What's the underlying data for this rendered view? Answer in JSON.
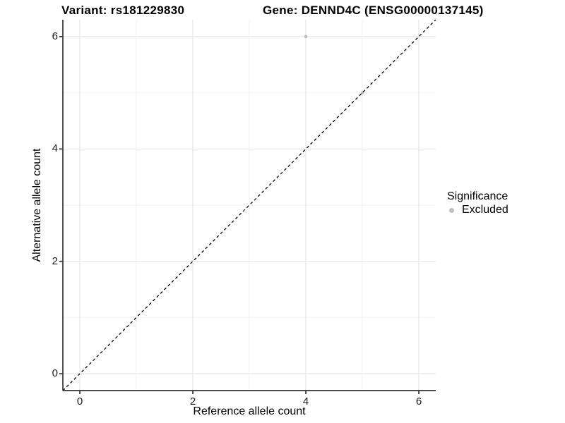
{
  "chart_data": {
    "type": "scatter",
    "title_left": "Variant: rs181229830",
    "title_right": "Gene: DENND4C (ENSG00000137145)",
    "xlabel": "Reference allele count",
    "ylabel": "Alternative allele count",
    "xlim": [
      -0.3,
      6.3
    ],
    "ylim": [
      -0.3,
      6.3
    ],
    "x_ticks": [
      0,
      2,
      4,
      6
    ],
    "y_ticks": [
      0,
      2,
      4,
      6
    ],
    "x_minor_gridlines": [
      1,
      3,
      5
    ],
    "y_minor_gridlines": [
      1,
      3,
      5
    ],
    "grid": "major and minor gridlines, light gray on white panel",
    "points": [
      {
        "x": 4,
        "y": 6,
        "significance": "Excluded"
      },
      {
        "x": 5,
        "y": 5,
        "significance": "Excluded"
      }
    ],
    "identity_line": {
      "slope": 1,
      "intercept": 0,
      "linetype": "dashed",
      "color": "#000000"
    },
    "legend": {
      "title": "Significance",
      "position": "right",
      "entries": [
        {
          "label": "Excluded",
          "marker": "circle",
          "color": "#bdbdbd"
        }
      ]
    },
    "colors": {
      "background": "#ffffff",
      "grid_major": "#e7e7e7",
      "grid_minor": "#f2f2f2",
      "axis_line": "#333333",
      "tick_label": "#1a1a1a",
      "title_text": "#000000",
      "excluded_point": "#bdbdbd"
    }
  }
}
